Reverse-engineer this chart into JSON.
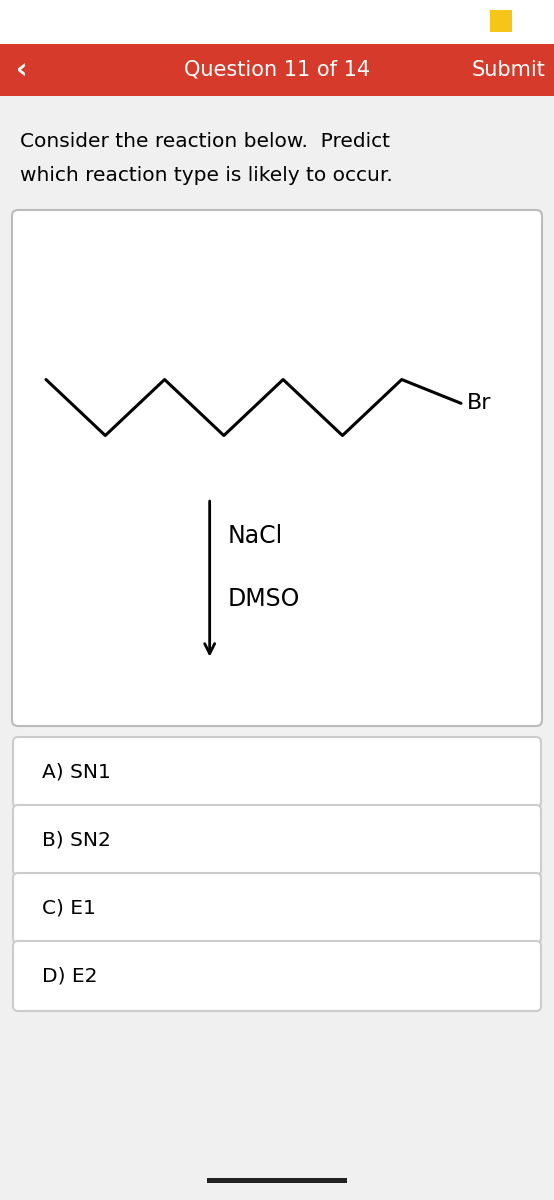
{
  "header_color": "#d63a2a",
  "header_text": "Question 11 of 14",
  "header_submit": "Submit",
  "header_back": "‹",
  "yellow_rect_color": "#f5c518",
  "bg_color": "#f0f0f0",
  "question_text_line1": "Consider the reaction below.  Predict",
  "question_text_line2": "which reaction type is likely to occur.",
  "choices": [
    "A) SN1",
    "B) SN2",
    "C) E1",
    "D) E2"
  ],
  "nacl_text": "NaCl",
  "dmso_text": "DMSO",
  "br_text": "Br",
  "footer_bar_color": "#222222",
  "font_family": "DejaVu Sans"
}
